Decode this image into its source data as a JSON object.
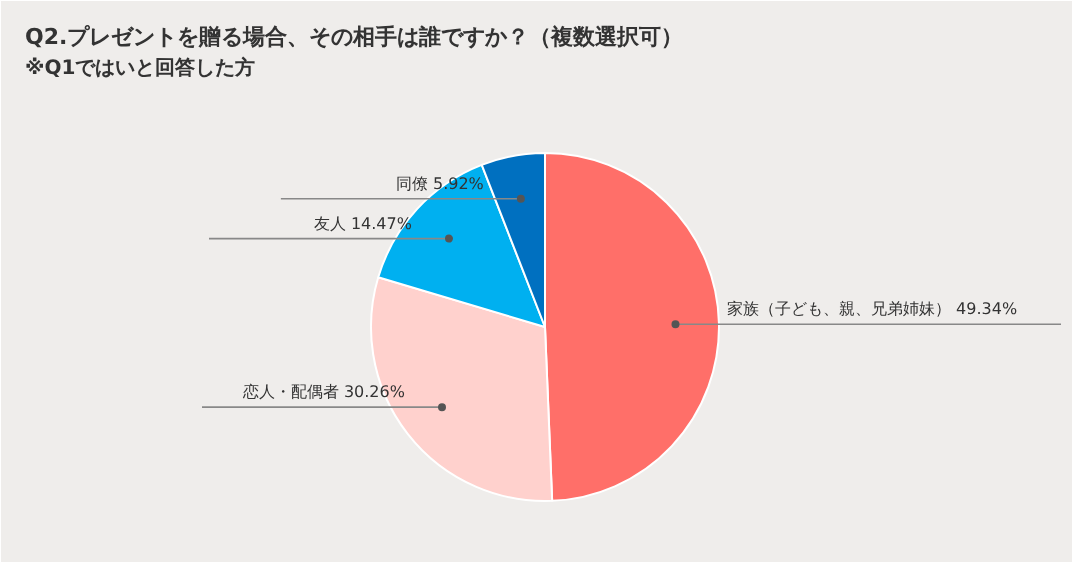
{
  "chart_data": {
    "type": "pie",
    "title": "Q2.プレゼントを贈る場合、その相手は誰ですか？（複数選択可）",
    "subtitle": "※Q1ではいと回答した方",
    "categories": [
      "家族（子ども、親、兄弟姉妹）",
      "恋人・配偶者",
      "友人",
      "同僚"
    ],
    "values": [
      49.34,
      30.26,
      14.47,
      5.92
    ],
    "value_labels": [
      "49.34%",
      "30.26%",
      "14.47%",
      "5.92%"
    ],
    "colors": [
      "#ff6f69",
      "#ffd1cd",
      "#00b0f0",
      "#0070c0"
    ]
  }
}
